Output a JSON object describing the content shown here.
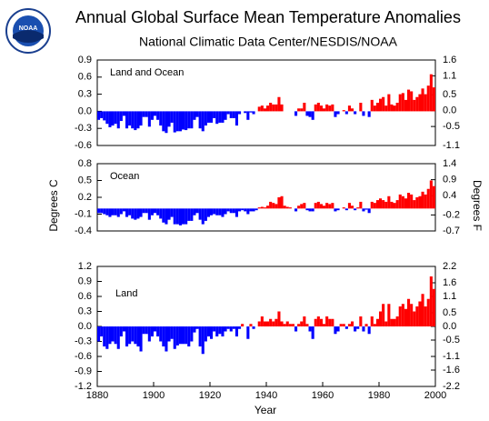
{
  "figure": {
    "title": "Annual Global Surface Mean Temperature Anomalies",
    "subtitle": "National Climatic Data Center/NESDIS/NOAA",
    "xlabel": "Year",
    "ylabel": "Degrees C",
    "y2label": "Degrees F",
    "logo_text": "NOAA"
  },
  "chart_data": [
    {
      "type": "bar",
      "annotation": "Land and Ocean",
      "color_positive": "#ff0000",
      "color_negative": "#0000ff",
      "xlim": [
        1880,
        2000
      ],
      "ylim": [
        -0.6,
        0.9
      ],
      "yticks": [
        -0.6,
        -0.3,
        {
          "value": 0,
          "label": "0.0"
        },
        0.3,
        0.6,
        0.9
      ],
      "y2lim": [
        -1.1,
        1.6
      ],
      "y2ticks": [
        -1.1,
        -0.5,
        {
          "value": 0,
          "label": "0.0"
        },
        0.5,
        1.1,
        1.6
      ],
      "x": [
        1880,
        1881,
        1882,
        1883,
        1884,
        1885,
        1886,
        1887,
        1888,
        1889,
        1890,
        1891,
        1892,
        1893,
        1894,
        1895,
        1896,
        1897,
        1898,
        1899,
        1900,
        1901,
        1902,
        1903,
        1904,
        1905,
        1906,
        1907,
        1908,
        1909,
        1910,
        1911,
        1912,
        1913,
        1914,
        1915,
        1916,
        1917,
        1918,
        1919,
        1920,
        1921,
        1922,
        1923,
        1924,
        1925,
        1926,
        1927,
        1928,
        1929,
        1930,
        1931,
        1932,
        1933,
        1934,
        1935,
        1936,
        1937,
        1938,
        1939,
        1940,
        1941,
        1942,
        1943,
        1944,
        1945,
        1946,
        1947,
        1948,
        1949,
        1950,
        1951,
        1952,
        1953,
        1954,
        1955,
        1956,
        1957,
        1958,
        1959,
        1960,
        1961,
        1962,
        1963,
        1964,
        1965,
        1966,
        1967,
        1968,
        1969,
        1970,
        1971,
        1972,
        1973,
        1974,
        1975,
        1976,
        1977,
        1978,
        1979,
        1980,
        1981,
        1982,
        1983,
        1984,
        1985,
        1986,
        1987,
        1988,
        1989,
        1990,
        1991,
        1992,
        1993,
        1994,
        1995,
        1996,
        1997,
        1998,
        1999
      ],
      "values": [
        -0.15,
        -0.12,
        -0.16,
        -0.22,
        -0.28,
        -0.25,
        -0.22,
        -0.3,
        -0.17,
        -0.08,
        -0.3,
        -0.25,
        -0.3,
        -0.33,
        -0.3,
        -0.25,
        -0.1,
        -0.1,
        -0.27,
        -0.15,
        -0.08,
        -0.15,
        -0.25,
        -0.35,
        -0.38,
        -0.27,
        -0.2,
        -0.37,
        -0.35,
        -0.35,
        -0.32,
        -0.33,
        -0.3,
        -0.3,
        -0.15,
        -0.1,
        -0.3,
        -0.35,
        -0.25,
        -0.2,
        -0.2,
        -0.12,
        -0.22,
        -0.2,
        -0.2,
        -0.15,
        -0.05,
        -0.12,
        -0.12,
        -0.25,
        -0.05,
        0.0,
        -0.03,
        -0.15,
        -0.02,
        -0.05,
        0.0,
        0.08,
        0.1,
        0.05,
        0.1,
        0.15,
        0.12,
        0.12,
        0.25,
        0.12,
        0.0,
        0.0,
        0.0,
        0.0,
        -0.08,
        0.05,
        0.05,
        0.15,
        -0.08,
        -0.1,
        -0.15,
        0.12,
        0.15,
        0.1,
        0.05,
        0.12,
        0.1,
        0.12,
        -0.1,
        -0.05,
        0.0,
        0.02,
        -0.05,
        0.1,
        0.05,
        -0.05,
        0.0,
        0.15,
        -0.08,
        0.0,
        -0.1,
        0.2,
        0.1,
        0.15,
        0.22,
        0.25,
        0.1,
        0.3,
        0.12,
        0.1,
        0.15,
        0.3,
        0.32,
        0.2,
        0.38,
        0.35,
        0.2,
        0.25,
        0.3,
        0.4,
        0.3,
        0.45,
        0.65,
        0.42
      ]
    },
    {
      "type": "bar",
      "annotation": "Ocean",
      "color_positive": "#ff0000",
      "color_negative": "#0000ff",
      "xlim": [
        1880,
        2000
      ],
      "ylim": [
        -0.4,
        0.8
      ],
      "yticks": [
        -0.4,
        -0.1,
        0.2,
        0.5,
        0.8
      ],
      "y2lim": [
        -0.7,
        1.4
      ],
      "y2ticks": [
        -0.7,
        -0.2,
        0.4,
        0.9,
        1.4
      ],
      "x": [
        1880,
        1881,
        1882,
        1883,
        1884,
        1885,
        1886,
        1887,
        1888,
        1889,
        1890,
        1891,
        1892,
        1893,
        1894,
        1895,
        1896,
        1897,
        1898,
        1899,
        1900,
        1901,
        1902,
        1903,
        1904,
        1905,
        1906,
        1907,
        1908,
        1909,
        1910,
        1911,
        1912,
        1913,
        1914,
        1915,
        1916,
        1917,
        1918,
        1919,
        1920,
        1921,
        1922,
        1923,
        1924,
        1925,
        1926,
        1927,
        1928,
        1929,
        1930,
        1931,
        1932,
        1933,
        1934,
        1935,
        1936,
        1937,
        1938,
        1939,
        1940,
        1941,
        1942,
        1943,
        1944,
        1945,
        1946,
        1947,
        1948,
        1949,
        1950,
        1951,
        1952,
        1953,
        1954,
        1955,
        1956,
        1957,
        1958,
        1959,
        1960,
        1961,
        1962,
        1963,
        1964,
        1965,
        1966,
        1967,
        1968,
        1969,
        1970,
        1971,
        1972,
        1973,
        1974,
        1975,
        1976,
        1977,
        1978,
        1979,
        1980,
        1981,
        1982,
        1983,
        1984,
        1985,
        1986,
        1987,
        1988,
        1989,
        1990,
        1991,
        1992,
        1993,
        1994,
        1995,
        1996,
        1997,
        1998,
        1999
      ],
      "values": [
        -0.08,
        -0.08,
        -0.1,
        -0.12,
        -0.15,
        -0.12,
        -0.12,
        -0.15,
        -0.1,
        -0.05,
        -0.15,
        -0.12,
        -0.18,
        -0.2,
        -0.18,
        -0.15,
        -0.08,
        -0.08,
        -0.2,
        -0.12,
        -0.08,
        -0.12,
        -0.18,
        -0.25,
        -0.28,
        -0.2,
        -0.15,
        -0.28,
        -0.28,
        -0.3,
        -0.28,
        -0.28,
        -0.22,
        -0.22,
        -0.12,
        -0.08,
        -0.2,
        -0.28,
        -0.22,
        -0.15,
        -0.12,
        -0.1,
        -0.12,
        -0.12,
        -0.15,
        -0.1,
        -0.05,
        -0.08,
        -0.08,
        -0.15,
        -0.05,
        -0.03,
        -0.05,
        -0.1,
        -0.05,
        -0.05,
        -0.03,
        0.02,
        0.03,
        0.02,
        0.05,
        0.12,
        0.1,
        0.08,
        0.2,
        0.22,
        0.05,
        0.03,
        0.02,
        0.0,
        -0.05,
        0.05,
        0.08,
        0.1,
        -0.03,
        -0.05,
        -0.05,
        0.1,
        0.12,
        0.08,
        0.05,
        0.1,
        0.08,
        0.1,
        -0.05,
        -0.03,
        0.0,
        0.02,
        -0.03,
        0.1,
        0.05,
        -0.03,
        0.02,
        0.12,
        -0.05,
        -0.02,
        -0.08,
        0.12,
        0.1,
        0.15,
        0.18,
        0.15,
        0.12,
        0.22,
        0.12,
        0.1,
        0.15,
        0.25,
        0.22,
        0.18,
        0.28,
        0.25,
        0.15,
        0.2,
        0.22,
        0.3,
        0.25,
        0.35,
        0.5,
        0.4
      ]
    },
    {
      "type": "bar",
      "annotation": "Land",
      "color_positive": "#ff0000",
      "color_negative": "#0000ff",
      "xlim": [
        1880,
        2000
      ],
      "xticks": [
        1880,
        1900,
        1920,
        1940,
        1960,
        1980,
        2000
      ],
      "ylim": [
        -1.2,
        1.2
      ],
      "yticks": [
        -1.2,
        -0.9,
        -0.6,
        -0.3,
        {
          "value": 0,
          "label": "0.0"
        },
        0.3,
        0.6,
        0.9,
        1.2
      ],
      "y2lim": [
        -2.2,
        2.2
      ],
      "y2ticks": [
        -2.2,
        -1.6,
        -1.1,
        -0.5,
        {
          "value": 0,
          "label": "0.0"
        },
        0.5,
        1.1,
        1.6,
        2.2
      ],
      "x": [
        1880,
        1881,
        1882,
        1883,
        1884,
        1885,
        1886,
        1887,
        1888,
        1889,
        1890,
        1891,
        1892,
        1893,
        1894,
        1895,
        1896,
        1897,
        1898,
        1899,
        1900,
        1901,
        1902,
        1903,
        1904,
        1905,
        1906,
        1907,
        1908,
        1909,
        1910,
        1911,
        1912,
        1913,
        1914,
        1915,
        1916,
        1917,
        1918,
        1919,
        1920,
        1921,
        1922,
        1923,
        1924,
        1925,
        1926,
        1927,
        1928,
        1929,
        1930,
        1931,
        1932,
        1933,
        1934,
        1935,
        1936,
        1937,
        1938,
        1939,
        1940,
        1941,
        1942,
        1943,
        1944,
        1945,
        1946,
        1947,
        1948,
        1949,
        1950,
        1951,
        1952,
        1953,
        1954,
        1955,
        1956,
        1957,
        1958,
        1959,
        1960,
        1961,
        1962,
        1963,
        1964,
        1965,
        1966,
        1967,
        1968,
        1969,
        1970,
        1971,
        1972,
        1973,
        1974,
        1975,
        1976,
        1977,
        1978,
        1979,
        1980,
        1981,
        1982,
        1983,
        1984,
        1985,
        1986,
        1987,
        1988,
        1989,
        1990,
        1991,
        1992,
        1993,
        1994,
        1995,
        1996,
        1997,
        1998,
        1999
      ],
      "values": [
        -0.3,
        -0.2,
        -0.4,
        -0.45,
        -0.35,
        -0.3,
        -0.35,
        -0.45,
        -0.2,
        -0.1,
        -0.4,
        -0.35,
        -0.3,
        -0.35,
        -0.4,
        -0.5,
        -0.15,
        -0.15,
        -0.3,
        -0.2,
        -0.1,
        -0.2,
        -0.3,
        -0.4,
        -0.5,
        -0.3,
        -0.25,
        -0.45,
        -0.38,
        -0.35,
        -0.35,
        -0.35,
        -0.4,
        -0.3,
        -0.12,
        -0.05,
        -0.4,
        -0.55,
        -0.3,
        -0.2,
        -0.25,
        -0.1,
        -0.2,
        -0.15,
        -0.2,
        -0.1,
        -0.05,
        -0.1,
        -0.05,
        -0.2,
        -0.05,
        0.05,
        0.0,
        -0.25,
        0.05,
        -0.05,
        0.0,
        0.1,
        0.2,
        0.1,
        0.1,
        0.15,
        0.1,
        0.15,
        0.3,
        0.1,
        0.05,
        0.1,
        0.05,
        0.05,
        -0.1,
        0.05,
        0.1,
        0.2,
        0.05,
        -0.1,
        -0.25,
        0.15,
        0.2,
        0.15,
        0.05,
        0.2,
        0.15,
        0.15,
        -0.15,
        -0.1,
        0.05,
        0.05,
        -0.05,
        0.05,
        0.1,
        -0.1,
        -0.05,
        0.2,
        -0.1,
        0.05,
        -0.15,
        0.2,
        0.05,
        0.15,
        0.3,
        0.45,
        0.1,
        0.45,
        0.15,
        0.15,
        0.2,
        0.4,
        0.45,
        0.35,
        0.55,
        0.45,
        0.3,
        0.4,
        0.5,
        0.65,
        0.4,
        0.55,
        1.0,
        0.75
      ]
    }
  ]
}
